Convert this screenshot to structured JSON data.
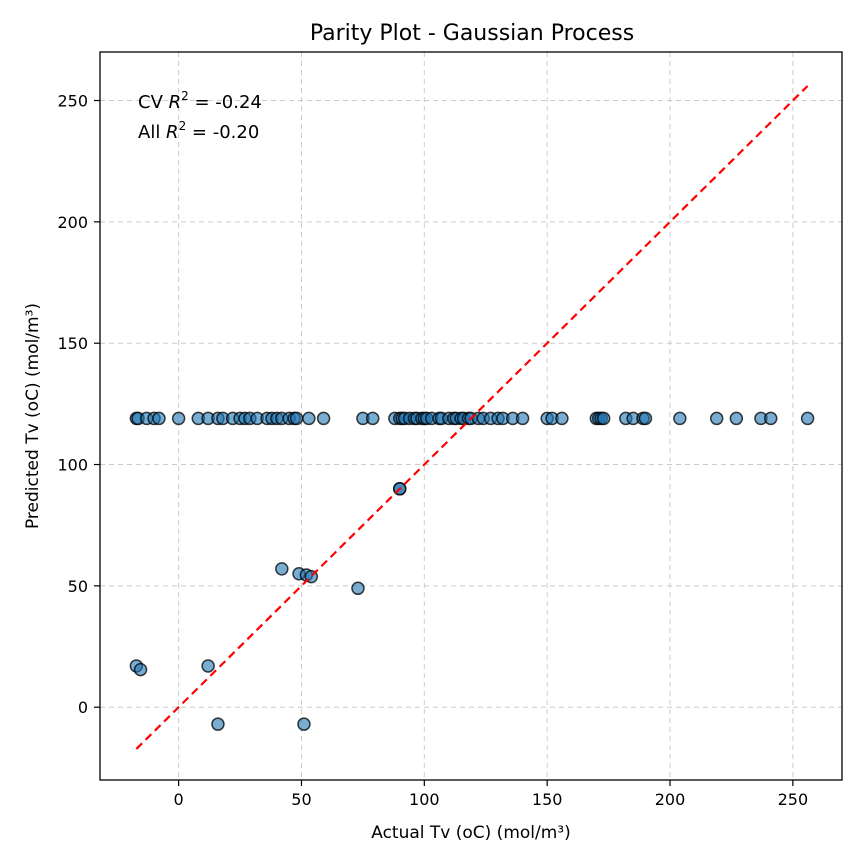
{
  "chart_data": {
    "type": "scatter",
    "title": "Parity Plot - Gaussian Process",
    "xlabel": "Actual Tv (oC) (mol/m³)",
    "ylabel": "Predicted Tv (oC) (mol/m³)",
    "xlim": [
      -32,
      270
    ],
    "ylim": [
      -30,
      270
    ],
    "xticks": [
      0,
      50,
      100,
      150,
      200,
      250
    ],
    "yticks": [
      0,
      50,
      100,
      150,
      200,
      250
    ],
    "grid": true,
    "annotation": {
      "line1_prefix": "CV ",
      "line1_var": "R",
      "line1_sup": "2",
      "line1_value": " = -0.24",
      "line2_prefix": "All ",
      "line2_var": "R",
      "line2_sup": "2",
      "line2_value": " = -0.20"
    },
    "parity_line": {
      "from": [
        -17.2,
        -17.2
      ],
      "to": [
        256,
        256
      ],
      "color": "#ff0000"
    },
    "point_color": "#1f77b4",
    "series": [
      {
        "points": [
          [
            -17.2,
            119
          ],
          [
            -16.5,
            119
          ],
          [
            -13,
            119
          ],
          [
            -10,
            119
          ],
          [
            -8,
            119
          ],
          [
            0,
            119
          ],
          [
            8,
            119
          ],
          [
            12,
            119
          ],
          [
            16,
            119
          ],
          [
            18,
            119
          ],
          [
            22,
            119
          ],
          [
            25,
            119
          ],
          [
            27,
            119
          ],
          [
            29,
            119
          ],
          [
            32,
            119
          ],
          [
            36,
            119
          ],
          [
            38,
            119
          ],
          [
            40,
            119
          ],
          [
            42,
            119
          ],
          [
            45,
            119
          ],
          [
            47,
            119
          ],
          [
            48,
            119
          ],
          [
            53,
            119
          ],
          [
            59,
            119
          ],
          [
            75,
            119
          ],
          [
            79,
            119
          ],
          [
            88,
            119
          ],
          [
            90,
            119
          ],
          [
            91,
            119
          ],
          [
            92,
            119
          ],
          [
            94,
            119
          ],
          [
            96,
            119
          ],
          [
            97,
            119
          ],
          [
            99,
            119
          ],
          [
            100,
            119
          ],
          [
            101,
            119
          ],
          [
            103,
            119
          ],
          [
            106,
            119
          ],
          [
            107,
            119
          ],
          [
            110,
            119
          ],
          [
            112,
            119
          ],
          [
            113,
            119
          ],
          [
            115,
            119
          ],
          [
            116,
            119
          ],
          [
            118,
            119
          ],
          [
            119,
            119
          ],
          [
            122,
            119
          ],
          [
            124,
            119
          ],
          [
            127,
            119
          ],
          [
            130,
            119
          ],
          [
            132,
            119
          ],
          [
            136,
            119
          ],
          [
            140,
            119
          ],
          [
            150,
            119
          ],
          [
            152,
            119
          ],
          [
            156,
            119
          ],
          [
            170,
            119
          ],
          [
            171,
            119
          ],
          [
            172,
            119
          ],
          [
            173,
            119
          ],
          [
            182,
            119
          ],
          [
            185,
            119
          ],
          [
            189,
            119
          ],
          [
            190,
            119
          ],
          [
            204,
            119
          ],
          [
            219,
            119
          ],
          [
            227,
            119
          ],
          [
            237,
            119
          ],
          [
            241,
            119
          ],
          [
            256,
            119
          ],
          [
            90,
            90
          ],
          [
            90,
            90
          ],
          [
            42,
            57
          ],
          [
            49,
            55
          ],
          [
            52,
            54.5
          ],
          [
            54,
            53.8
          ],
          [
            73,
            49
          ],
          [
            -17.2,
            17
          ],
          [
            -15.5,
            15.5
          ],
          [
            12,
            17
          ],
          [
            16,
            -7
          ],
          [
            51,
            -7
          ]
        ]
      }
    ]
  }
}
